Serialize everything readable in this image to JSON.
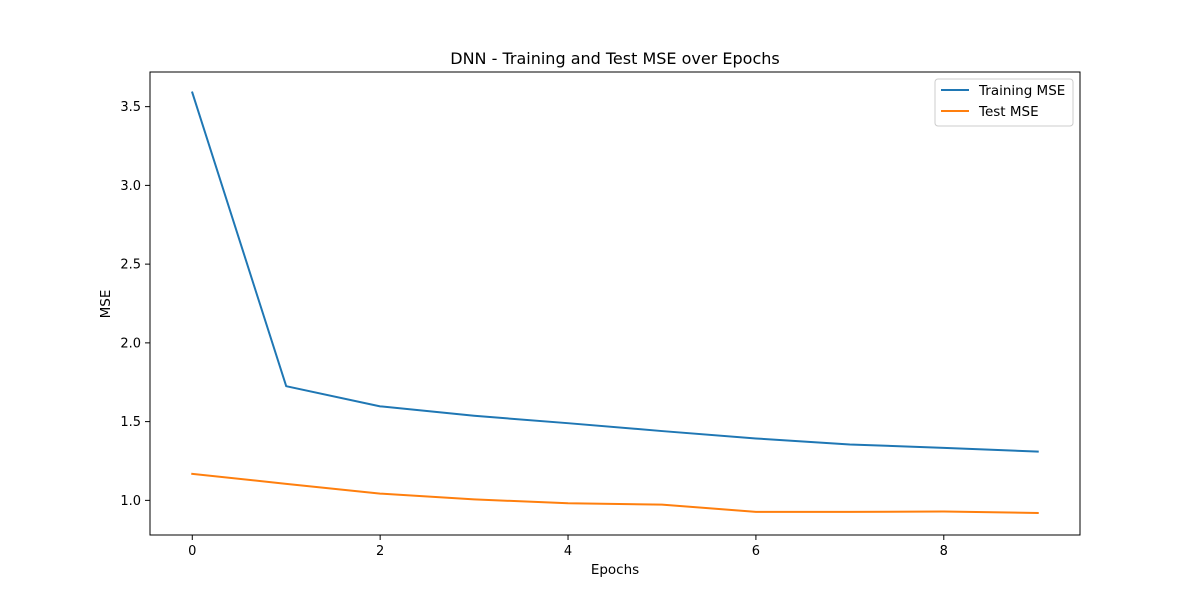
{
  "chart_data": {
    "type": "line",
    "title": "DNN - Training and Test MSE over Epochs",
    "xlabel": "Epochs",
    "ylabel": "MSE",
    "x": [
      0,
      1,
      2,
      3,
      4,
      5,
      6,
      7,
      8,
      9
    ],
    "series": [
      {
        "name": "Training MSE",
        "color": "#1f77b4",
        "values": [
          3.59,
          1.725,
          1.597,
          1.537,
          1.49,
          1.44,
          1.393,
          1.355,
          1.333,
          1.31
        ]
      },
      {
        "name": "Test MSE",
        "color": "#ff7f0e",
        "values": [
          1.168,
          1.105,
          1.043,
          1.006,
          0.982,
          0.973,
          0.927,
          0.927,
          0.929,
          0.92
        ]
      }
    ],
    "xlim": [
      -0.45,
      9.45
    ],
    "ylim": [
      0.78,
      3.72
    ],
    "xticks": [
      0,
      2,
      4,
      6,
      8
    ],
    "xtick_labels": [
      "0",
      "2",
      "4",
      "6",
      "8"
    ],
    "yticks": [
      1.0,
      1.5,
      2.0,
      2.5,
      3.0,
      3.5
    ],
    "ytick_labels": [
      "1.0",
      "1.5",
      "2.0",
      "2.5",
      "3.0",
      "3.5"
    ],
    "grid": false,
    "legend_position": "top-right"
  }
}
